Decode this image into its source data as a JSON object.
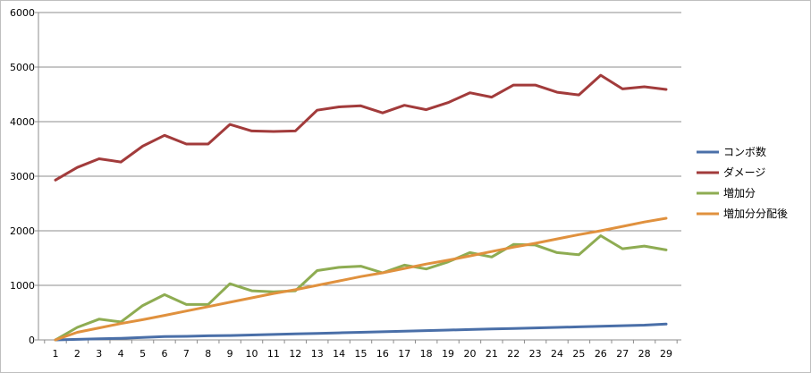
{
  "chart_data": {
    "type": "line",
    "title": "",
    "xlabel": "",
    "ylabel": "",
    "ylim": [
      0,
      6000
    ],
    "y_ticks": [
      0,
      1000,
      2000,
      3000,
      4000,
      5000,
      6000
    ],
    "grid": "horizontal",
    "legend_position": "right",
    "categories": [
      1,
      2,
      3,
      4,
      5,
      6,
      7,
      8,
      9,
      10,
      11,
      12,
      13,
      14,
      15,
      16,
      17,
      18,
      19,
      20,
      21,
      22,
      23,
      24,
      25,
      26,
      27,
      28,
      29
    ],
    "series": [
      {
        "name": "コンボ数",
        "color": "#4a6fa8",
        "values": [
          0,
          10,
          20,
          30,
          45,
          60,
          65,
          75,
          80,
          90,
          100,
          110,
          120,
          130,
          140,
          150,
          160,
          170,
          180,
          190,
          200,
          210,
          220,
          230,
          240,
          250,
          260,
          270,
          290
        ]
      },
      {
        "name": "ダメージ",
        "color": "#a23b3b",
        "values": [
          2930,
          3160,
          3320,
          3260,
          3550,
          3750,
          3590,
          3590,
          3950,
          3830,
          3820,
          3830,
          4210,
          4270,
          4290,
          4160,
          4300,
          4220,
          4350,
          4530,
          4450,
          4670,
          4670,
          4540,
          4490,
          4850,
          4600,
          4640,
          4590
        ]
      },
      {
        "name": "増加分",
        "color": "#8eac52",
        "values": [
          0,
          230,
          380,
          330,
          630,
          830,
          650,
          650,
          1030,
          900,
          880,
          900,
          1270,
          1330,
          1350,
          1230,
          1370,
          1300,
          1430,
          1600,
          1520,
          1750,
          1740,
          1600,
          1560,
          1910,
          1670,
          1720,
          1650
        ]
      },
      {
        "name": "増加分分配後",
        "color": "#e0913e",
        "values": [
          0,
          140,
          220,
          300,
          370,
          450,
          530,
          610,
          690,
          770,
          850,
          920,
          1000,
          1080,
          1160,
          1230,
          1310,
          1390,
          1460,
          1540,
          1620,
          1700,
          1770,
          1850,
          1930,
          2000,
          2080,
          2160,
          2230
        ]
      }
    ]
  }
}
